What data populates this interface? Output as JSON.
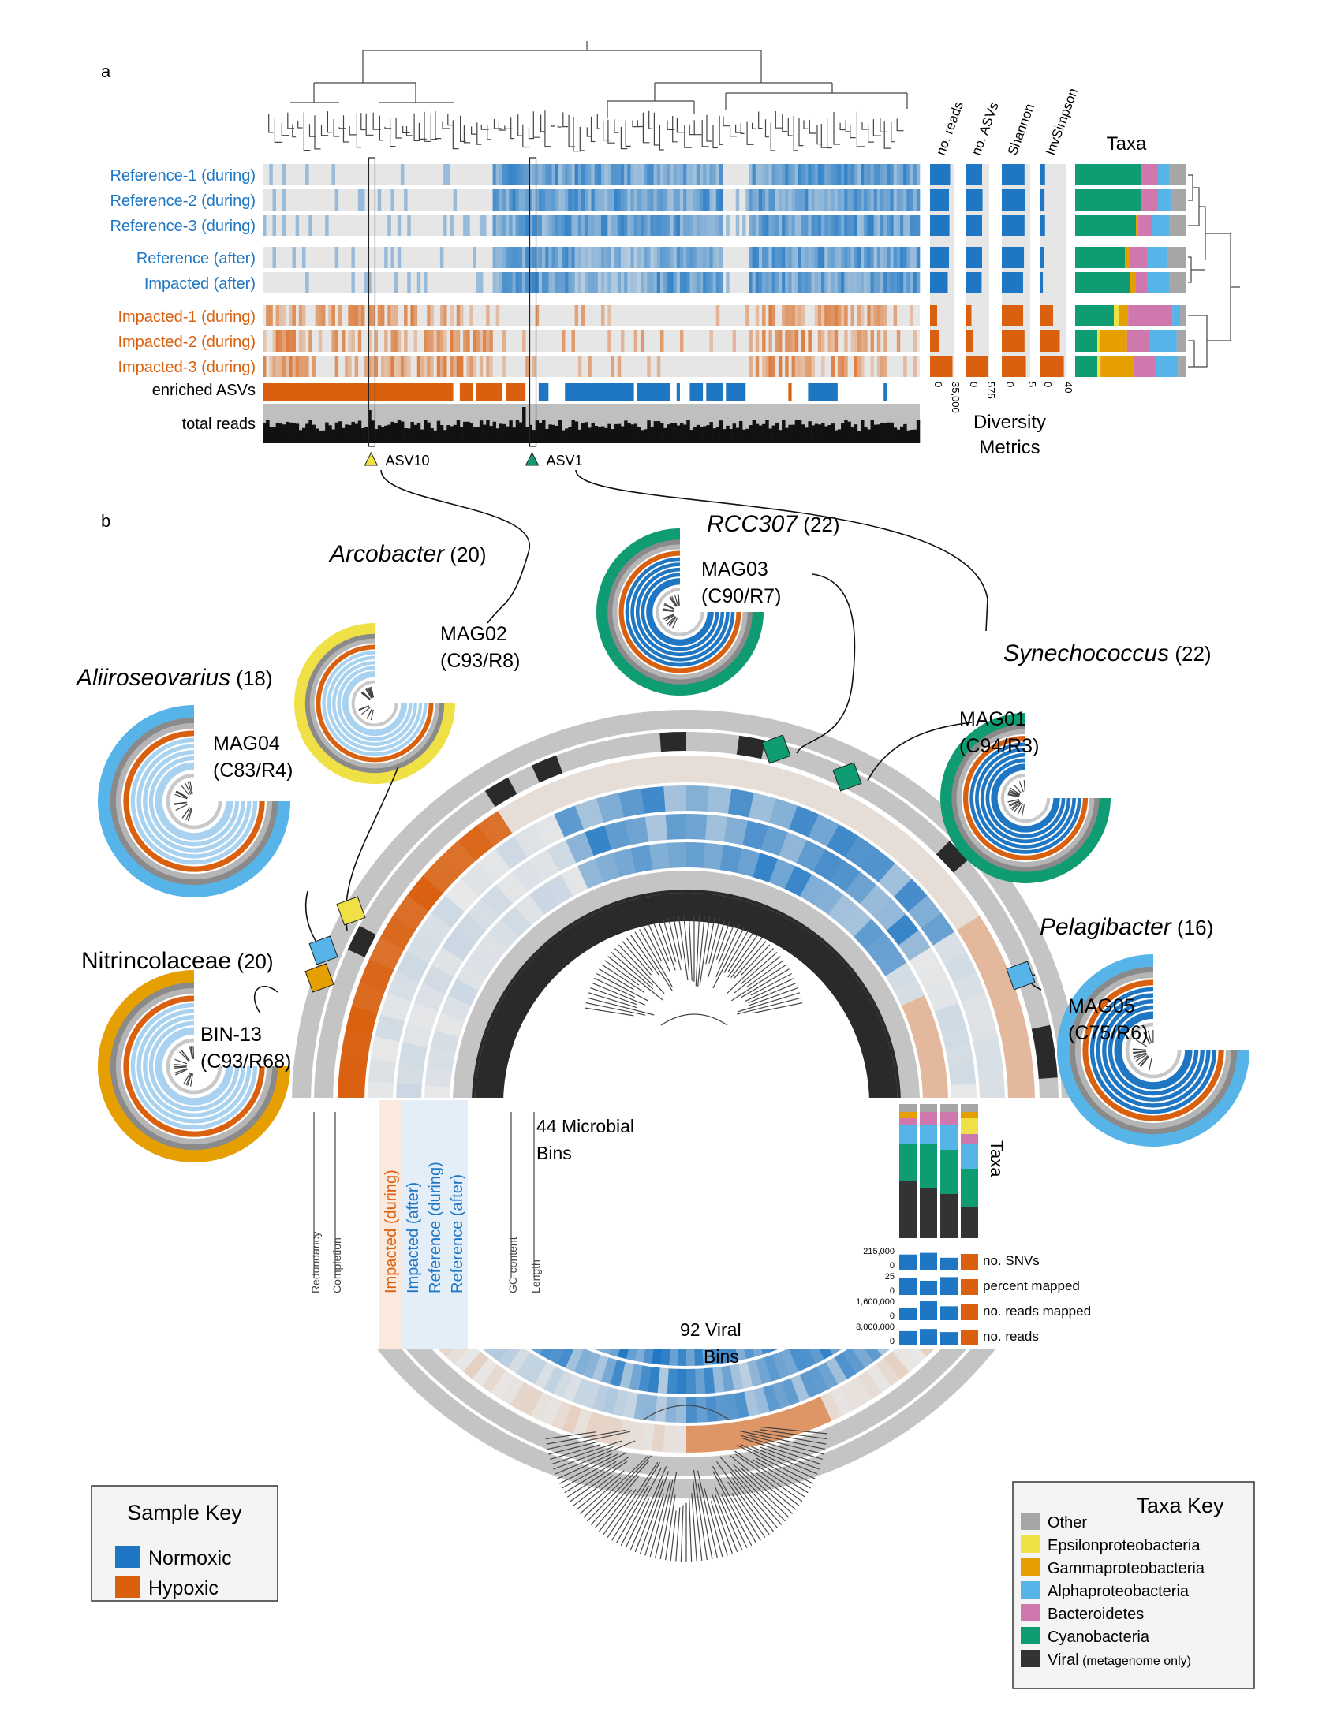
{
  "panel_labels": {
    "a": "a",
    "b": "b"
  },
  "colors": {
    "normoxic": "#1f77c4",
    "hypoxic": "#d9600f",
    "panel_bg": "#e6e6e6",
    "other": "#a6a6a6",
    "epsilonproteobacteria": "#efe045",
    "gammaproteobacteria": "#e69f00",
    "alphaproteobacteria": "#56b4e9",
    "bacteroidetes": "#d077ad",
    "cyanobacteria": "#109c72",
    "viral": "#333333"
  },
  "samples": [
    {
      "label": "Reference-1 (during)",
      "group": "normoxic"
    },
    {
      "label": "Reference-2 (during)",
      "group": "normoxic"
    },
    {
      "label": "Reference-3 (during)",
      "group": "normoxic"
    },
    {
      "label": "Reference (after)",
      "group": "normoxic"
    },
    {
      "label": "Impacted (after)",
      "group": "normoxic"
    },
    {
      "label": "Impacted-1 (during)",
      "group": "hypoxic"
    },
    {
      "label": "Impacted-2 (during)",
      "group": "hypoxic"
    },
    {
      "label": "Impacted-3 (during)",
      "group": "hypoxic"
    }
  ],
  "panel_a": {
    "enriched_label": "enriched ASVs",
    "total_reads_label": "total reads",
    "asv_markers": [
      "ASV10",
      "ASV1"
    ],
    "diversity_headers": [
      "no. reads",
      "no. ASVs",
      "Shannon",
      "InvSimpson"
    ],
    "diversity_ticks": [
      [
        "0",
        "35,000"
      ],
      [
        "0",
        "575"
      ],
      [
        "0",
        "5"
      ],
      [
        "0",
        "40"
      ]
    ],
    "diversity_title_line1": "Diversity",
    "diversity_title_line2": "Metrics",
    "diversity_values": {
      "no_reads": [
        0.85,
        0.8,
        0.82,
        0.8,
        0.75,
        0.3,
        0.4,
        0.95
      ],
      "no_asvs": [
        0.7,
        0.72,
        0.7,
        0.7,
        0.68,
        0.25,
        0.3,
        0.95
      ],
      "shannon": [
        0.8,
        0.82,
        0.8,
        0.78,
        0.75,
        0.75,
        0.8,
        0.85
      ],
      "invsimpson": [
        0.2,
        0.18,
        0.2,
        0.15,
        0.12,
        0.5,
        0.75,
        0.9
      ]
    },
    "taxa_title": "Taxa",
    "taxa_composition": [
      [
        0.6,
        0.0,
        0.0,
        0.15,
        0.1,
        0.15
      ],
      [
        0.6,
        0.0,
        0.0,
        0.15,
        0.12,
        0.13
      ],
      [
        0.55,
        0.0,
        0.02,
        0.13,
        0.15,
        0.15
      ],
      [
        0.45,
        0.0,
        0.05,
        0.15,
        0.18,
        0.17
      ],
      [
        0.5,
        0.0,
        0.05,
        0.1,
        0.2,
        0.15
      ],
      [
        0.35,
        0.05,
        0.08,
        0.4,
        0.07,
        0.05
      ],
      [
        0.2,
        0.02,
        0.25,
        0.2,
        0.25,
        0.08
      ],
      [
        0.2,
        0.03,
        0.3,
        0.2,
        0.2,
        0.07
      ]
    ],
    "taxa_order": [
      "cyanobacteria",
      "epsilonproteobacteria",
      "gammaproteobacteria",
      "bacteroidetes",
      "alphaproteobacteria",
      "other"
    ]
  },
  "panel_b": {
    "microbial_bins": "44 Microbial",
    "microbial_bins2": "Bins",
    "viral_bins": "92 Viral",
    "viral_bins2": "Bins",
    "ring_labels": [
      "Redundancy",
      "Completion",
      "Impacted (during)",
      "Impacted (after)",
      "Reference (during)",
      "Reference (after)",
      "GC-content",
      "Length"
    ],
    "side_title": "Taxa",
    "side_labels": [
      "no. SNVs",
      "percent mapped",
      "no. reads mapped",
      "no. reads"
    ],
    "side_ticks": [
      [
        "215,000",
        "0"
      ],
      [
        "25",
        "0"
      ],
      [
        "1,600,000",
        "0"
      ],
      [
        "8,000,000",
        "0"
      ]
    ],
    "mags": [
      {
        "taxon": "Arcobacter",
        "count": "(20)",
        "italic": true,
        "mag": "MAG02",
        "stats": "(C93/R8)",
        "color": "epsilonproteobacteria"
      },
      {
        "taxon": "RCC307",
        "count": "(22)",
        "italic": true,
        "mag": "MAG03",
        "stats": "(C90/R7)",
        "color": "cyanobacteria"
      },
      {
        "taxon": "Synechococcus",
        "count": "(22)",
        "italic": true,
        "mag": "MAG01",
        "stats": "(C94/R3)",
        "color": "cyanobacteria"
      },
      {
        "taxon": "Aliiroseovarius",
        "count": "(18)",
        "italic": true,
        "mag": "MAG04",
        "stats": "(C83/R4)",
        "color": "alphaproteobacteria"
      },
      {
        "taxon": "Nitrincolaceae",
        "count": "(20)",
        "italic": false,
        "mag": "BIN-13",
        "stats": "(C93/R68)",
        "color": "gammaproteobacteria"
      },
      {
        "taxon": "Pelagibacter",
        "count": "(16)",
        "italic": true,
        "mag": "MAG05",
        "stats": "(C75/R6)",
        "color": "alphaproteobacteria"
      }
    ]
  },
  "sample_key": {
    "title": "Sample Key",
    "items": [
      {
        "label": "Normoxic",
        "color": "normoxic"
      },
      {
        "label": "Hypoxic",
        "color": "hypoxic"
      }
    ]
  },
  "taxa_key": {
    "title": "Taxa Key",
    "items": [
      {
        "label": "Other",
        "color": "other"
      },
      {
        "label": "Epsilonproteobacteria",
        "color": "epsilonproteobacteria"
      },
      {
        "label": "Gammaproteobacteria",
        "color": "gammaproteobacteria"
      },
      {
        "label": "Alphaproteobacteria",
        "color": "alphaproteobacteria"
      },
      {
        "label": "Bacteroidetes",
        "color": "bacteroidetes"
      },
      {
        "label": "Cyanobacteria",
        "color": "cyanobacteria"
      },
      {
        "label": "Viral",
        "color": "viral",
        "note": "(metagenome only)"
      }
    ]
  }
}
